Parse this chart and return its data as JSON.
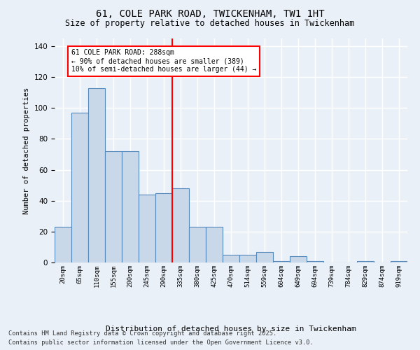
{
  "title1": "61, COLE PARK ROAD, TWICKENHAM, TW1 1HT",
  "title2": "Size of property relative to detached houses in Twickenham",
  "xlabel": "Distribution of detached houses by size in Twickenham",
  "ylabel": "Number of detached properties",
  "bar_values": [
    23,
    97,
    113,
    72,
    72,
    44,
    45,
    48,
    23,
    23,
    5,
    5,
    7,
    1,
    4,
    1,
    0,
    0,
    1,
    0,
    1
  ],
  "categories": [
    "20sqm",
    "65sqm",
    "110sqm",
    "155sqm",
    "200sqm",
    "245sqm",
    "290sqm",
    "335sqm",
    "380sqm",
    "425sqm",
    "470sqm",
    "514sqm",
    "559sqm",
    "604sqm",
    "649sqm",
    "694sqm",
    "739sqm",
    "784sqm",
    "829sqm",
    "874sqm",
    "919sqm"
  ],
  "bar_color": "#c8d8e8",
  "bar_edge_color": "#5588bb",
  "annotation_text": "61 COLE PARK ROAD: 288sqm\n← 90% of detached houses are smaller (389)\n10% of semi-detached houses are larger (44) →",
  "annotation_box_color": "white",
  "annotation_box_edge_color": "red",
  "vline_color": "red",
  "vline_x": 6.5,
  "ylim": [
    0,
    145
  ],
  "yticks": [
    0,
    20,
    40,
    60,
    80,
    100,
    120,
    140
  ],
  "footer1": "Contains HM Land Registry data © Crown copyright and database right 2025.",
  "footer2": "Contains public sector information licensed under the Open Government Licence v3.0.",
  "bg_color": "#eaf0f8",
  "plot_bg_color": "#eaf0f8"
}
